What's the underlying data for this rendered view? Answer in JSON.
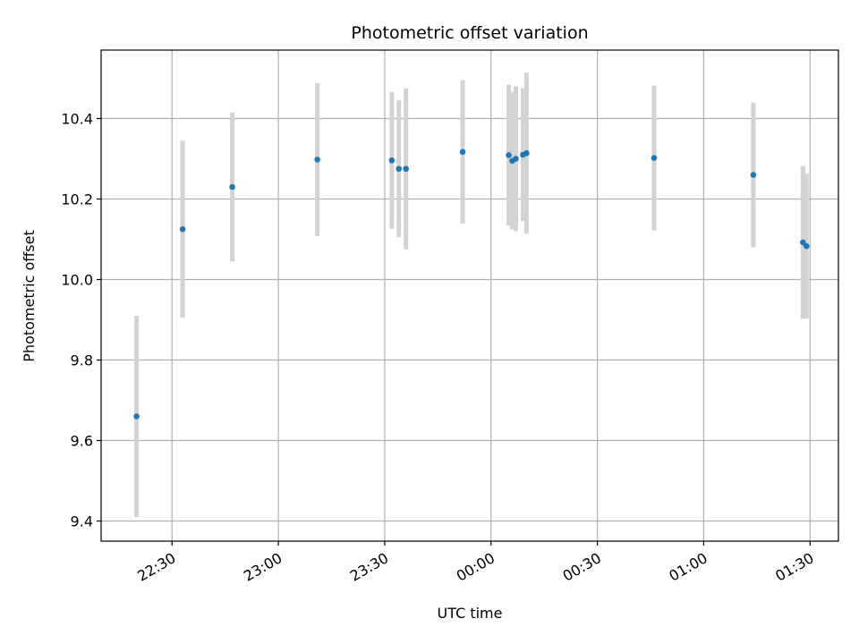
{
  "chart_data": {
    "type": "scatter",
    "title": "Photometric offset variation",
    "xlabel": "UTC time",
    "ylabel": "Photometric offset",
    "x_is_time": true,
    "xlim": [
      "22:10",
      "01:38"
    ],
    "ylim": [
      9.35,
      10.57
    ],
    "yticks": [
      9.4,
      9.6,
      9.8,
      10.0,
      10.2,
      10.4
    ],
    "xticks": [
      "22:30",
      "23:00",
      "23:30",
      "00:00",
      "00:30",
      "01:00",
      "01:30"
    ],
    "grid": true,
    "colors": {
      "point": "#1f77b4",
      "errorbar": "#d3d3d3",
      "grid": "#b0b0b0"
    },
    "points": [
      {
        "time": "22:20",
        "y": 9.66,
        "err": 0.25
      },
      {
        "time": "22:33",
        "y": 10.125,
        "err": 0.22
      },
      {
        "time": "22:47",
        "y": 10.23,
        "err": 0.185
      },
      {
        "time": "23:11",
        "y": 10.298,
        "err": 0.19
      },
      {
        "time": "23:32",
        "y": 10.296,
        "err": 0.17
      },
      {
        "time": "23:34",
        "y": 10.275,
        "err": 0.17
      },
      {
        "time": "23:36",
        "y": 10.275,
        "err": 0.2
      },
      {
        "time": "23:52",
        "y": 10.317,
        "err": 0.178
      },
      {
        "time": "00:05",
        "y": 10.309,
        "err": 0.175
      },
      {
        "time": "00:06",
        "y": 10.295,
        "err": 0.17
      },
      {
        "time": "00:07",
        "y": 10.3,
        "err": 0.18
      },
      {
        "time": "00:09",
        "y": 10.31,
        "err": 0.165
      },
      {
        "time": "00:10",
        "y": 10.314,
        "err": 0.2
      },
      {
        "time": "00:46",
        "y": 10.302,
        "err": 0.18
      },
      {
        "time": "01:14",
        "y": 10.26,
        "err": 0.18
      },
      {
        "time": "01:28",
        "y": 10.092,
        "err": 0.19
      },
      {
        "time": "01:29",
        "y": 10.083,
        "err": 0.18
      }
    ]
  }
}
